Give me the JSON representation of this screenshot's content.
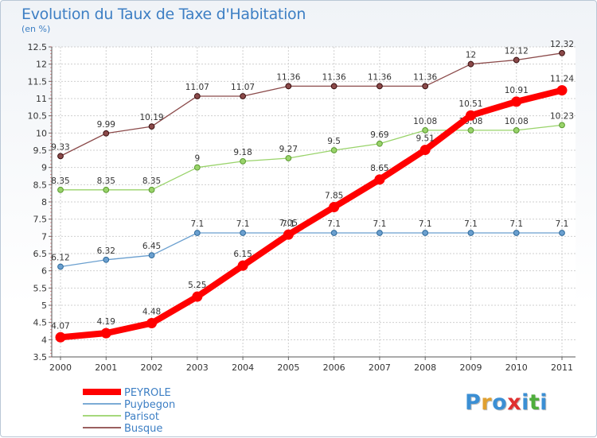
{
  "header": {
    "title": "Evolution du Taux de Taxe d'Habitation",
    "subtitle": "(en %)"
  },
  "logo": {
    "letters": [
      "P",
      "r",
      "o",
      "x",
      "i",
      "t",
      "i"
    ],
    "colors": [
      "#3b8fd4",
      "#e0a030",
      "#3b8fd4",
      "#e03030",
      "#3b8fd4",
      "#4fae3c",
      "#3b8fd4"
    ]
  },
  "chart_data": {
    "type": "line",
    "title": "Evolution du Taux de Taxe d'Habitation",
    "ylabel": "(en %)",
    "xlabel": "",
    "x": [
      "2000",
      "2001",
      "2002",
      "2003",
      "2004",
      "2005",
      "2006",
      "2007",
      "2008",
      "2009",
      "2010",
      "2011"
    ],
    "ylim": [
      3.5,
      12.5
    ],
    "yticks": [
      "3.5",
      "4",
      "4.5",
      "5",
      "5.5",
      "6",
      "6.5",
      "7",
      "7.5",
      "8",
      "8.5",
      "9",
      "9.5",
      "10",
      "10.5",
      "11",
      "11.5",
      "12",
      "12.5"
    ],
    "grid": true,
    "legend": "bottom-left",
    "series": [
      {
        "name": "PEYROLE",
        "color": "#ff0000",
        "values": [
          4.07,
          4.19,
          4.48,
          5.25,
          6.15,
          7.05,
          7.85,
          8.65,
          9.51,
          10.51,
          10.91,
          11.24
        ],
        "labels": [
          "4.07",
          "4.19",
          "4.48",
          "5.25",
          "6.15",
          "7.05",
          "7.85",
          "8.65",
          "9.51",
          "10.51",
          "10.91",
          "11.24"
        ]
      },
      {
        "name": "Puybegon",
        "color": "#6a9fcf",
        "values": [
          6.12,
          6.32,
          6.45,
          7.1,
          7.1,
          7.1,
          7.1,
          7.1,
          7.1,
          7.1,
          7.1,
          7.1
        ],
        "labels": [
          "6.12",
          "6.32",
          "6.45",
          "7.1",
          "7.1",
          "7.1",
          "7.1",
          "7.1",
          "7.1",
          "7.1",
          "7.1",
          "7.1"
        ]
      },
      {
        "name": "Parisot",
        "color": "#99d36a",
        "values": [
          8.35,
          8.35,
          8.35,
          9,
          9.18,
          9.27,
          9.5,
          9.69,
          10.08,
          10.08,
          10.08,
          10.23
        ],
        "labels": [
          "8.35",
          "8.35",
          "8.35",
          "9",
          "9.18",
          "9.27",
          "9.5",
          "9.69",
          "10.08",
          "10.08",
          "10.08",
          "10.23"
        ]
      },
      {
        "name": "Busque",
        "color": "#8b4a4a",
        "values": [
          9.33,
          9.99,
          10.19,
          11.07,
          11.07,
          11.36,
          11.36,
          11.36,
          11.36,
          12,
          12.12,
          12.32
        ],
        "labels": [
          "9.33",
          "9.99",
          "10.19",
          "11.07",
          "11.07",
          "11.36",
          "11.36",
          "11.36",
          "11.36",
          "12",
          "12.12",
          "12.32"
        ]
      }
    ]
  }
}
